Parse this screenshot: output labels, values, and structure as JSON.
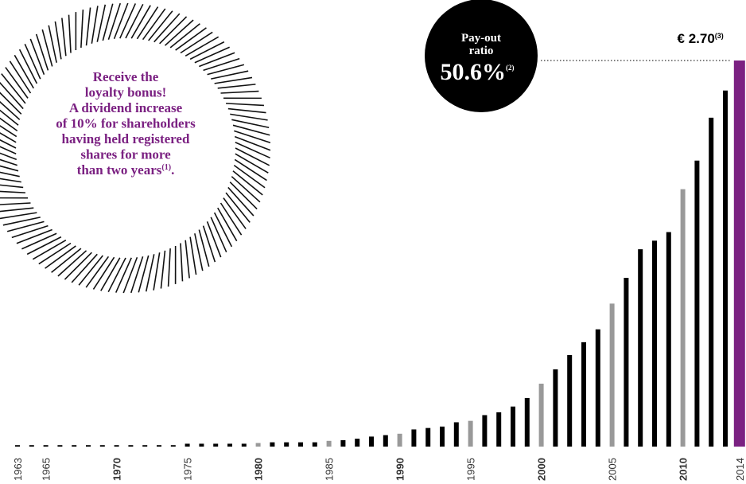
{
  "chart_data": {
    "type": "bar",
    "categories": [
      "1963",
      null,
      "1965",
      null,
      null,
      null,
      null,
      "1970",
      null,
      null,
      null,
      null,
      "1975",
      null,
      null,
      null,
      null,
      "1980",
      null,
      null,
      null,
      null,
      "1985",
      null,
      null,
      null,
      null,
      "1990",
      null,
      null,
      null,
      null,
      "1995",
      null,
      null,
      null,
      null,
      "2000",
      null,
      null,
      null,
      null,
      "2005",
      null,
      null,
      null,
      null,
      "2010",
      null,
      null,
      null,
      "2014"
    ],
    "values": [
      0.01,
      0.01,
      0.01,
      0.01,
      0.01,
      0.01,
      0.01,
      0.01,
      0.01,
      0.01,
      0.01,
      0.01,
      0.02,
      0.02,
      0.02,
      0.02,
      0.02,
      0.025,
      0.03,
      0.03,
      0.03,
      0.03,
      0.04,
      0.045,
      0.055,
      0.07,
      0.08,
      0.09,
      0.12,
      0.13,
      0.14,
      0.17,
      0.18,
      0.22,
      0.24,
      0.28,
      0.34,
      0.44,
      0.54,
      0.64,
      0.73,
      0.82,
      1.0,
      1.18,
      1.38,
      1.44,
      1.5,
      1.8,
      2.0,
      2.3,
      2.49,
      2.7
    ],
    "colors": [
      "#000",
      "#000",
      "#000",
      "#000",
      "#000",
      "#000",
      "#000",
      "#000",
      "#000",
      "#000",
      "#000",
      "#000",
      "#000",
      "#000",
      "#000",
      "#000",
      "#000",
      "#999",
      "#000",
      "#000",
      "#000",
      "#000",
      "#999",
      "#000",
      "#000",
      "#000",
      "#000",
      "#999",
      "#000",
      "#000",
      "#000",
      "#000",
      "#999",
      "#000",
      "#000",
      "#000",
      "#000",
      "#999",
      "#000",
      "#000",
      "#000",
      "#000",
      "#999",
      "#000",
      "#000",
      "#000",
      "#000",
      "#999",
      "#000",
      "#000",
      "#000",
      "#7b2182"
    ],
    "value_labels": [
      null,
      null,
      null,
      null,
      null,
      null,
      null,
      null,
      null,
      null,
      null,
      null,
      null,
      null,
      null,
      null,
      null,
      null,
      null,
      null,
      null,
      null,
      null,
      null,
      null,
      null,
      null,
      null,
      null,
      null,
      null,
      null,
      null,
      null,
      null,
      null,
      null,
      null,
      null,
      null,
      null,
      null,
      null,
      null,
      null,
      null,
      null,
      null,
      null,
      null,
      null,
      "€ 2.70"
    ],
    "value_label_note": "(3)"
  },
  "payout": {
    "label_lines": [
      "Pay-out",
      "ratio"
    ],
    "value_label": "50.6%",
    "note": "(2)"
  },
  "loyalty": {
    "lines": [
      "Receive the",
      "loyalty bonus!",
      "A dividend increase",
      "of 10% for shareholders",
      "having held registered",
      "shares for more",
      "than two years"
    ],
    "note": "(1)",
    "suffix": "."
  }
}
